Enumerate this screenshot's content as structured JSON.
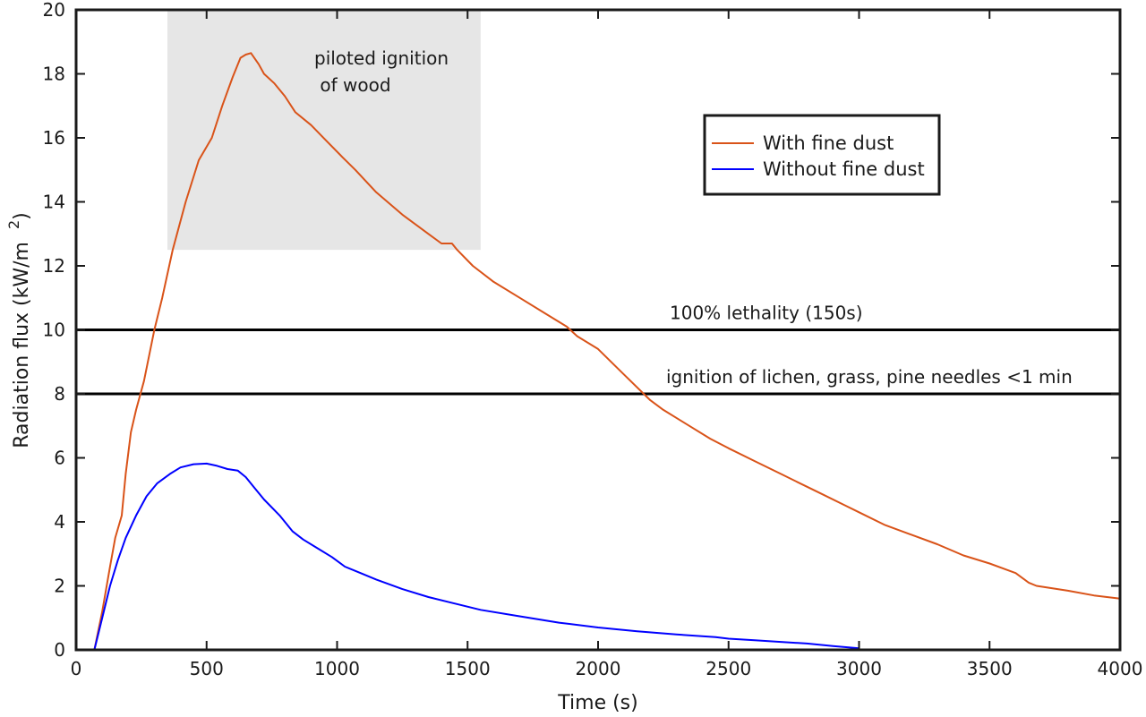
{
  "chart_data": {
    "type": "line",
    "xlabel": "Time (s)",
    "ylabel": "Radiation flux (kW/m",
    "ylabel_sup": "2",
    "ylabel_close": ")",
    "xlim": [
      0,
      4000
    ],
    "ylim": [
      0,
      20
    ],
    "xticks": [
      0,
      500,
      1000,
      1500,
      2000,
      2500,
      3000,
      3500,
      4000
    ],
    "yticks": [
      0,
      2,
      4,
      6,
      8,
      10,
      12,
      14,
      16,
      18,
      20
    ],
    "grid": false,
    "legend_position": "upper-right",
    "shaded_region": {
      "x": [
        350,
        1550
      ],
      "y": [
        12.5,
        20
      ],
      "color": "#e6e6e6",
      "label_lines": [
        "piloted ignition",
        " of wood"
      ]
    },
    "hlines": [
      {
        "y": 10,
        "label": "100% lethality (150s)"
      },
      {
        "y": 8,
        "label": "ignition of lichen, grass, pine needles <1 min"
      }
    ],
    "series": [
      {
        "name": "With fine dust",
        "color": "#d95319",
        "x": [
          70,
          100,
          130,
          150,
          175,
          190,
          210,
          230,
          260,
          300,
          330,
          370,
          420,
          470,
          520,
          560,
          600,
          630,
          650,
          670,
          700,
          720,
          760,
          800,
          840,
          900,
          960,
          1020,
          1070,
          1150,
          1250,
          1350,
          1400,
          1440,
          1460,
          1520,
          1600,
          1700,
          1800,
          1880,
          1920,
          2000,
          2100,
          2200,
          2250,
          2350,
          2430,
          2500,
          2600,
          2700,
          2800,
          2850,
          2950,
          3000,
          3100,
          3200,
          3300,
          3400,
          3500,
          3600,
          3650,
          3680,
          3800,
          3900,
          4000
        ],
        "y": [
          0.0,
          1.2,
          2.6,
          3.5,
          4.2,
          5.5,
          6.8,
          7.5,
          8.4,
          10.0,
          11.0,
          12.5,
          14.0,
          15.3,
          16.0,
          17.0,
          17.9,
          18.5,
          18.6,
          18.65,
          18.3,
          18.0,
          17.7,
          17.3,
          16.8,
          16.4,
          15.9,
          15.4,
          15.0,
          14.3,
          13.6,
          13.0,
          12.7,
          12.7,
          12.5,
          12.0,
          11.5,
          11.0,
          10.5,
          10.1,
          9.8,
          9.4,
          8.6,
          7.8,
          7.5,
          7.0,
          6.6,
          6.3,
          5.9,
          5.5,
          5.1,
          4.9,
          4.5,
          4.3,
          3.9,
          3.6,
          3.3,
          2.95,
          2.7,
          2.4,
          2.1,
          2.0,
          1.85,
          1.7,
          1.6
        ]
      },
      {
        "name": "Without fine dust",
        "color": "#0000ff",
        "x": [
          70,
          100,
          130,
          160,
          190,
          230,
          270,
          310,
          360,
          400,
          450,
          500,
          540,
          580,
          620,
          650,
          680,
          720,
          780,
          830,
          870,
          920,
          980,
          1030,
          1090,
          1150,
          1250,
          1350,
          1450,
          1550,
          1700,
          1850,
          2000,
          2150,
          2300,
          2450,
          2500,
          2600,
          2700,
          2800,
          2900,
          3000
        ],
        "y": [
          0.0,
          1.0,
          2.0,
          2.8,
          3.5,
          4.2,
          4.8,
          5.2,
          5.5,
          5.7,
          5.8,
          5.82,
          5.75,
          5.65,
          5.6,
          5.4,
          5.1,
          4.7,
          4.2,
          3.7,
          3.45,
          3.2,
          2.9,
          2.6,
          2.4,
          2.2,
          1.9,
          1.65,
          1.45,
          1.25,
          1.05,
          0.85,
          0.7,
          0.58,
          0.48,
          0.4,
          0.35,
          0.3,
          0.25,
          0.2,
          0.12,
          0.05
        ]
      }
    ]
  }
}
